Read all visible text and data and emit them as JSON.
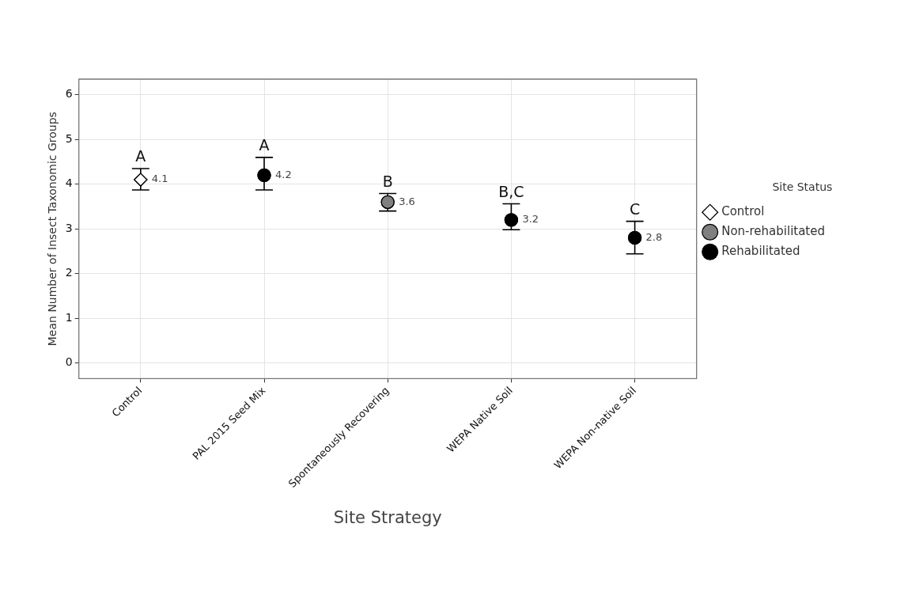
{
  "chart_data": {
    "type": "scatter",
    "xlabel": "Site Strategy",
    "ylabel": "Mean Number of Insect Taxonomic Groups",
    "legend_title": "Site Status",
    "legend": "right",
    "grid": true,
    "data_labels": true,
    "categories": [
      "Control",
      "PAL 2015 Seed Mix",
      "Spontaneously Recovering",
      "WEPA Native Soil",
      "WEPA Non-native Soil"
    ],
    "ylim": [
      -0.35,
      6.35
    ],
    "yticks": [
      0,
      1,
      2,
      3,
      4,
      5,
      6
    ],
    "series": [
      {
        "name": "Control",
        "color": "#ffffff",
        "marker": "diamond",
        "x": [
          "Control"
        ],
        "values": [
          4.1
        ],
        "errors": [
          [
            3.87,
            4.35
          ]
        ]
      },
      {
        "name": "Non-rehabilitated",
        "color": "#808080",
        "marker": "circle",
        "x": [
          "Spontaneously Recovering"
        ],
        "values": [
          3.6
        ],
        "errors": [
          [
            3.4,
            3.79
          ]
        ]
      },
      {
        "name": "Rehabilitated",
        "color": "#000000",
        "marker": "circle",
        "x": [
          "PAL 2015 Seed Mix",
          "WEPA Native Soil",
          "WEPA Non-native Soil"
        ],
        "values": [
          4.2,
          3.2,
          2.8
        ],
        "errors": [
          [
            3.87,
            4.6
          ],
          [
            2.98,
            3.56
          ],
          [
            2.44,
            3.17
          ]
        ]
      }
    ],
    "annotations": [
      {
        "text": "A",
        "x": "Control",
        "y": 4.35
      },
      {
        "text": "A",
        "x": "PAL 2015 Seed Mix",
        "y": 4.6
      },
      {
        "text": "B",
        "x": "Spontaneously Recovering",
        "y": 3.79
      },
      {
        "text": "B,C",
        "x": "WEPA Native Soil",
        "y": 3.56
      },
      {
        "text": "C",
        "x": "WEPA Non-native Soil",
        "y": 3.17
      }
    ]
  }
}
